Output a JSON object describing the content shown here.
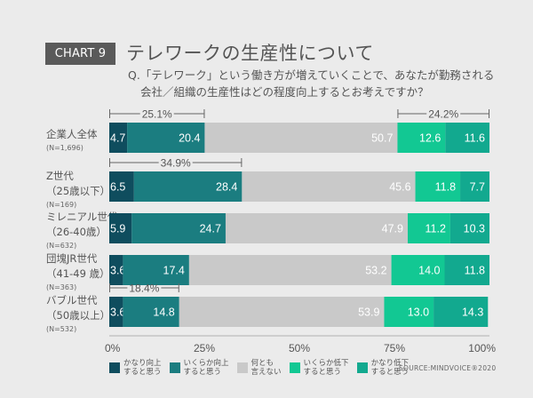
{
  "header": {
    "badge": "CHART 9",
    "title": "テレワークの生産性について",
    "question_line1": "Q.「テレワーク」という働き方が増えていくことで、あなたが勤務される",
    "question_line2": "会社／組織の生産性はどの程度向上するとお考えですか？"
  },
  "rows": [
    {
      "label1": "企業人全体",
      "label2": "",
      "n": "(N=1,696)"
    },
    {
      "label1": "Z世代",
      "label2": "（25歳以下）",
      "n": "(N=169)"
    },
    {
      "label1": "ミレニアル世代",
      "label2": "（26-40歳）",
      "n": "(N=632)"
    },
    {
      "label1": "団塊JR世代",
      "label2": "（41-49 歳）",
      "n": "(N=363)"
    },
    {
      "label1": "バブル世代",
      "label2": "（50歳以上）",
      "n": "(N=532)"
    }
  ],
  "source": "SOURCE:MINDVOICE®2020",
  "chart_data": {
    "type": "bar",
    "orientation": "horizontal-stacked-100",
    "title": "テレワークの生産性について",
    "categories": [
      "企業人全体",
      "Z世代（25歳以下）",
      "ミレニアル世代（26-40歳）",
      "団塊JR世代（41-49 歳）",
      "バブル世代（50歳以上）"
    ],
    "series": [
      {
        "name": "かなり向上すると思う",
        "color": "#0f4d5e",
        "values": [
          4.7,
          6.5,
          5.9,
          3.6,
          3.6
        ]
      },
      {
        "name": "いくらか向上すると思う",
        "color": "#1b7d80",
        "values": [
          20.4,
          28.4,
          24.7,
          17.4,
          14.8
        ]
      },
      {
        "name": "何とも言えない",
        "color": "#c9c9c9",
        "values": [
          50.7,
          45.6,
          47.9,
          53.2,
          53.9
        ]
      },
      {
        "name": "いくらか低下すると思う",
        "color": "#12c893",
        "values": [
          12.6,
          11.8,
          11.2,
          14.0,
          13.0
        ]
      },
      {
        "name": "かなり低下すると思う",
        "color": "#12a98f",
        "values": [
          11.6,
          7.7,
          10.3,
          11.8,
          14.3
        ]
      }
    ],
    "legend_labels": [
      "かなり向上\nすると思う",
      "いくらか向上\nすると思う",
      "何とも\n言えない",
      "いくらか低下\nすると思う",
      "かなり低下\nすると思う"
    ],
    "x_ticks": [
      "0%",
      "25%",
      "50%",
      "75%",
      "100%"
    ],
    "xlim": [
      0,
      100
    ],
    "annotations": [
      {
        "row": 0,
        "side": "improve",
        "text": "25.1%",
        "value": 25.1
      },
      {
        "row": 0,
        "side": "decline",
        "text": "24.2%",
        "value": 24.2
      },
      {
        "row": 1,
        "side": "improve",
        "text": "34.9%",
        "value": 34.9
      },
      {
        "row": 4,
        "side": "improve",
        "text": "18.4%",
        "value": 18.4
      }
    ],
    "legend_position": "bottom",
    "grid": false
  }
}
